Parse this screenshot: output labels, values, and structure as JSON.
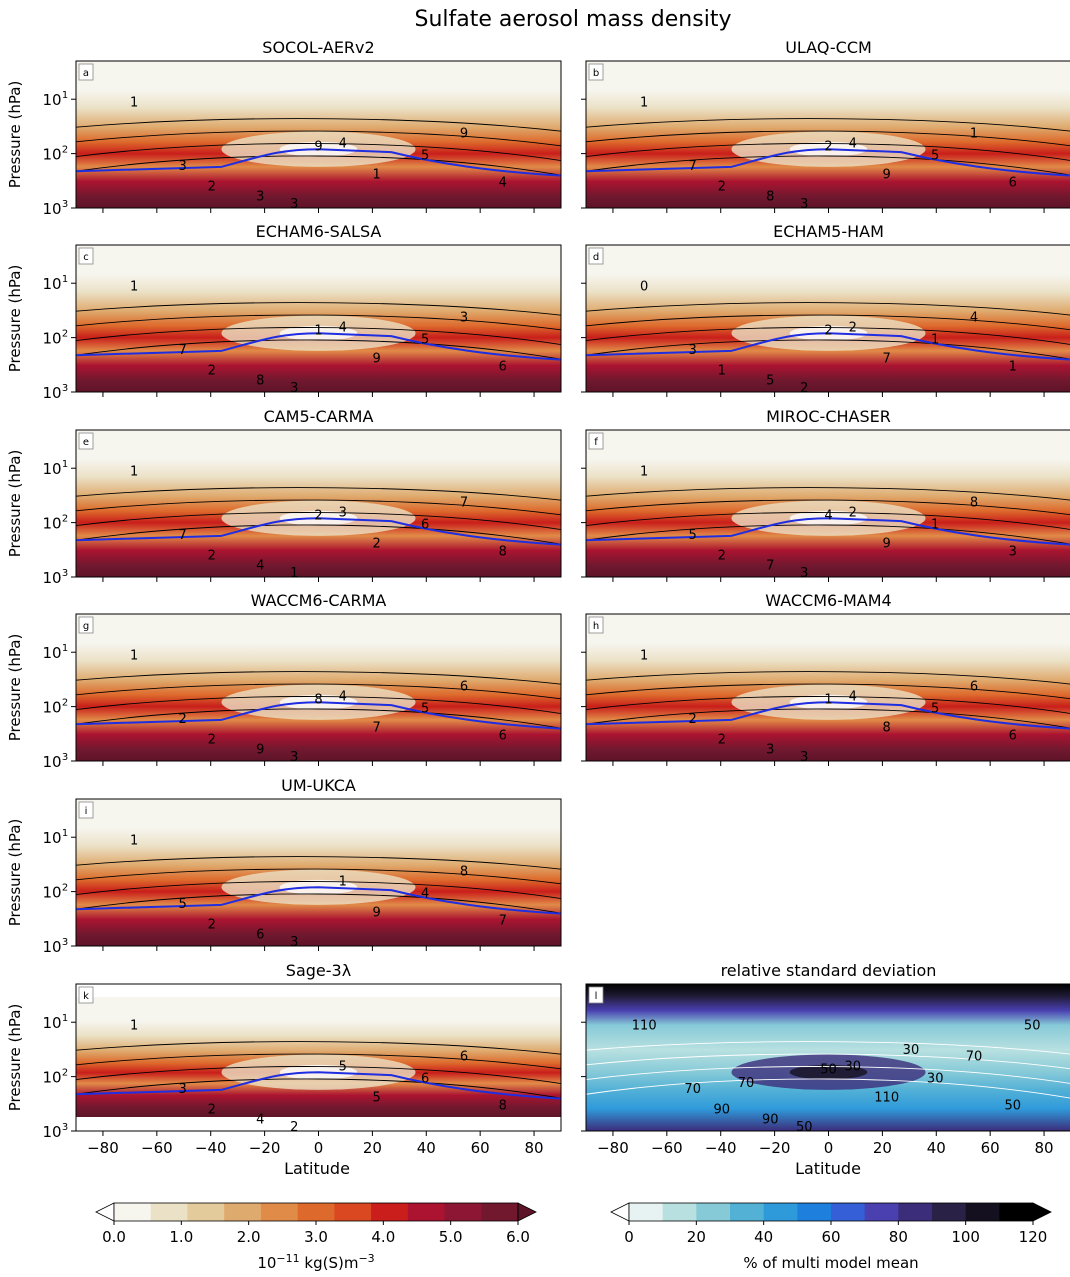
{
  "figure": {
    "title": "Sulfate aerosol mass density",
    "xlabel": "Latitude",
    "ylabel": "Pressure (hPa)"
  },
  "chart_data": [
    {
      "type": "heatmap",
      "letter": "a",
      "title": "SOCOL-AERv2",
      "xlim": [
        -90,
        90
      ],
      "ylim": [
        1000,
        2
      ],
      "ylog": true,
      "contour_labels": [
        "1",
        "2",
        "3",
        "4",
        "5",
        "4",
        "3",
        "3",
        "1",
        "9",
        "9"
      ]
    },
    {
      "type": "heatmap",
      "letter": "b",
      "title": "ULAQ-CCM",
      "xlim": [
        -90,
        90
      ],
      "ylim": [
        1000,
        2
      ],
      "ylog": true,
      "contour_labels": [
        "1",
        "2",
        "3",
        "4",
        "5",
        "6",
        "7",
        "8",
        "9",
        "1",
        "2"
      ]
    },
    {
      "type": "heatmap",
      "letter": "c",
      "title": "ECHAM6-SALSA",
      "xlim": [
        -90,
        90
      ],
      "ylim": [
        1000,
        2
      ],
      "ylog": true,
      "contour_labels": [
        "1",
        "2",
        "3",
        "4",
        "5",
        "6",
        "7",
        "8",
        "9",
        "3",
        "1"
      ]
    },
    {
      "type": "heatmap",
      "letter": "d",
      "title": "ECHAM5-HAM",
      "xlim": [
        -90,
        90
      ],
      "ylim": [
        1000,
        2
      ],
      "ylog": true,
      "contour_labels": [
        "0",
        "1",
        "2",
        "2",
        "1",
        "1",
        "3",
        "5",
        "7",
        "4",
        "2"
      ]
    },
    {
      "type": "heatmap",
      "letter": "e",
      "title": "CAM5-CARMA",
      "xlim": [
        -90,
        90
      ],
      "ylim": [
        1000,
        2
      ],
      "ylog": true,
      "contour_labels": [
        "1",
        "2",
        "1",
        "3",
        "6",
        "8",
        "7",
        "4",
        "2",
        "7",
        "2"
      ]
    },
    {
      "type": "heatmap",
      "letter": "f",
      "title": "MIROC-CHASER",
      "xlim": [
        -90,
        90
      ],
      "ylim": [
        1000,
        2
      ],
      "ylog": true,
      "contour_labels": [
        "1",
        "2",
        "3",
        "2",
        "1",
        "3",
        "5",
        "7",
        "9",
        "8",
        "4"
      ]
    },
    {
      "type": "heatmap",
      "letter": "g",
      "title": "WACCM6-CARMA",
      "xlim": [
        -90,
        90
      ],
      "ylim": [
        1000,
        2
      ],
      "ylog": true,
      "contour_labels": [
        "1",
        "2",
        "3",
        "4",
        "5",
        "6",
        "2",
        "9",
        "7",
        "6",
        "8"
      ]
    },
    {
      "type": "heatmap",
      "letter": "h",
      "title": "WACCM6-MAM4",
      "xlim": [
        -90,
        90
      ],
      "ylim": [
        1000,
        2
      ],
      "ylog": true,
      "contour_labels": [
        "1",
        "2",
        "3",
        "4",
        "5",
        "6",
        "2",
        "3",
        "8",
        "6",
        "1"
      ]
    },
    {
      "type": "heatmap",
      "letter": "i",
      "title": "UM-UKCA",
      "xlim": [
        -90,
        90
      ],
      "ylim": [
        1000,
        2
      ],
      "ylog": true,
      "contour_labels": [
        "1",
        "2",
        "3",
        "1",
        "4",
        "7",
        "5",
        "6",
        "9",
        "8"
      ]
    },
    {
      "type": "heatmap",
      "letter": "k",
      "title": "Sage-3λ",
      "xlim": [
        -90,
        90
      ],
      "ylim": [
        1000,
        2
      ],
      "ylog": true,
      "contour_labels": [
        "1",
        "2",
        "2",
        "5",
        "6",
        "8",
        "3",
        "4",
        "5",
        "6"
      ]
    },
    {
      "type": "heatmap",
      "letter": "l",
      "title": "relative standard deviation",
      "xlim": [
        -90,
        90
      ],
      "ylim": [
        1000,
        2
      ],
      "ylog": true,
      "contour_labels": [
        "110",
        "90",
        "50",
        "30",
        "30",
        "50",
        "70",
        "90",
        "110",
        "70",
        "50",
        "70",
        "30",
        "50"
      ]
    }
  ],
  "axes": {
    "yticks": [
      "10",
      "10",
      "10"
    ],
    "yexps": [
      "1",
      "2",
      "3"
    ],
    "xticks": [
      "−80",
      "−60",
      "−40",
      "−20",
      "0",
      "20",
      "40",
      "60",
      "80"
    ]
  },
  "colorbars": [
    {
      "label_base": "10",
      "label_exp": "−11",
      "label_unit": " kg(S)m",
      "label_unit_exp": "−3",
      "ticks": [
        "0.0",
        "1.0",
        "2.0",
        "3.0",
        "4.0",
        "5.0",
        "6.0"
      ],
      "colors": [
        "#f6f5ee",
        "#ebe1c6",
        "#e3cb9c",
        "#dfaa6e",
        "#e18b48",
        "#dd6a2c",
        "#d94820",
        "#c91e1b",
        "#ab1330",
        "#8c1634",
        "#71182f"
      ],
      "under": "#ffffff",
      "over": "#5e1428"
    },
    {
      "label": "% of multi model mean",
      "ticks": [
        "0",
        "20",
        "40",
        "60",
        "80",
        "100",
        "120"
      ],
      "colors": [
        "#e7f3f3",
        "#b8e0e0",
        "#86cad8",
        "#53b1d6",
        "#2f9ada",
        "#1e7fdc",
        "#345fd6",
        "#4a40b0",
        "#3c2d7a",
        "#2a2147",
        "#151020",
        "#000000"
      ],
      "under": "#ffffff",
      "over": "#000000"
    }
  ]
}
